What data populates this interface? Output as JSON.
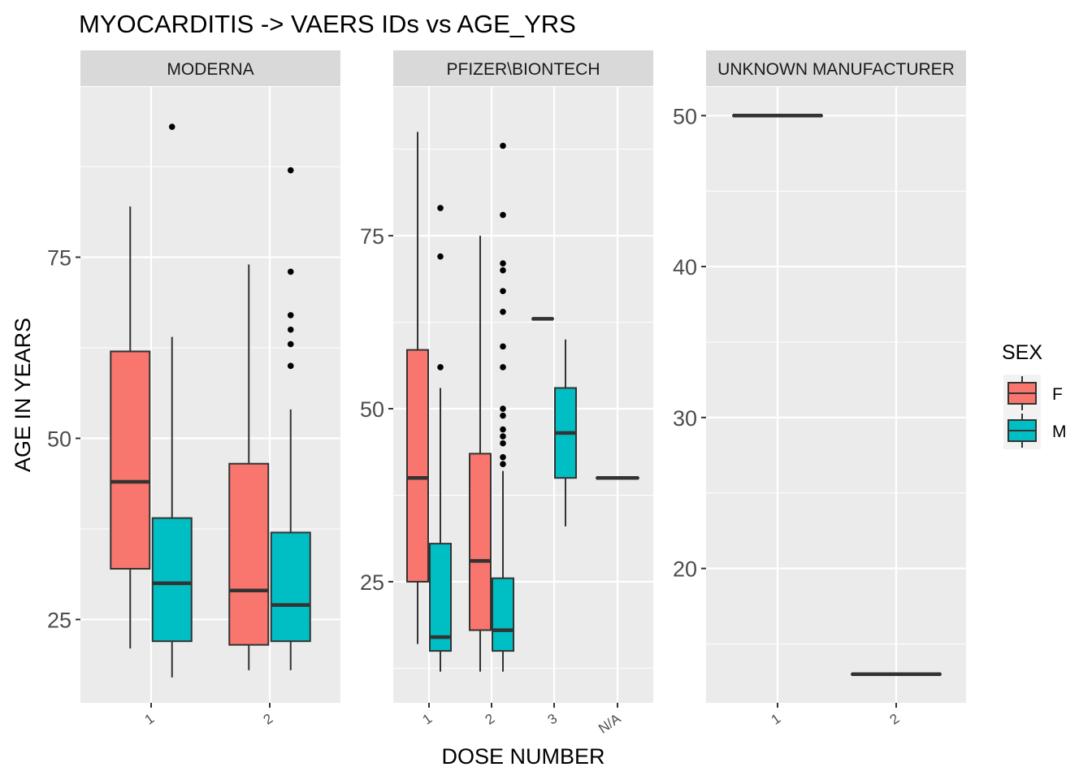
{
  "chart_data": {
    "type": "boxplot",
    "title": "MYOCARDITIS -> VAERS IDs vs AGE_YRS",
    "xlabel": "DOSE NUMBER",
    "ylabel": "AGE IN YEARS",
    "legend": {
      "title": "SEX",
      "placement": "right",
      "entries": [
        {
          "label": "F",
          "color": "#F8766D"
        },
        {
          "label": "M",
          "color": "#00BFC4"
        }
      ]
    },
    "panels": [
      {
        "name": "MODERNA",
        "categories": [
          "1",
          "2"
        ],
        "ylim": [
          13.5,
          98.5
        ],
        "yticks": [
          25,
          50,
          75
        ],
        "boxes": [
          {
            "dose": "1",
            "sex": "F",
            "min": 21,
            "q1": 32,
            "median": 44,
            "q3": 62,
            "max": 82,
            "outliers": []
          },
          {
            "dose": "1",
            "sex": "M",
            "min": 17,
            "q1": 22,
            "median": 30,
            "q3": 39,
            "max": 64,
            "outliers": [
              93
            ]
          },
          {
            "dose": "2",
            "sex": "F",
            "min": 18,
            "q1": 21.5,
            "median": 29,
            "q3": 46.5,
            "max": 74,
            "outliers": []
          },
          {
            "dose": "2",
            "sex": "M",
            "min": 18,
            "q1": 22,
            "median": 27,
            "q3": 37,
            "max": 54,
            "outliers": [
              60,
              63,
              65,
              67,
              73,
              87
            ]
          }
        ]
      },
      {
        "name": "PFIZER\\BIONTECH",
        "categories": [
          "1",
          "2",
          "3",
          "N/A"
        ],
        "ylim": [
          7.5,
          96.5
        ],
        "yticks": [
          25,
          50,
          75
        ],
        "boxes": [
          {
            "dose": "1",
            "sex": "F",
            "min": 16,
            "q1": 25,
            "median": 40,
            "q3": 58.5,
            "max": 90,
            "outliers": []
          },
          {
            "dose": "1",
            "sex": "M",
            "min": 12,
            "q1": 15,
            "median": 17,
            "q3": 30.5,
            "max": 53,
            "outliers": [
              56,
              72,
              79
            ]
          },
          {
            "dose": "2",
            "sex": "F",
            "min": 12,
            "q1": 18,
            "median": 28,
            "q3": 43.5,
            "max": 75,
            "outliers": []
          },
          {
            "dose": "2",
            "sex": "M",
            "min": 12,
            "q1": 15,
            "median": 18,
            "q3": 25.5,
            "max": 41,
            "outliers": [
              42,
              43,
              45,
              46,
              47,
              49,
              50,
              56,
              59,
              64,
              67,
              70,
              71,
              78,
              88
            ]
          },
          {
            "dose": "3",
            "sex": "F",
            "min": 63,
            "q1": 63,
            "median": 63,
            "q3": 63,
            "max": 63,
            "outliers": []
          },
          {
            "dose": "3",
            "sex": "M",
            "min": 33,
            "q1": 40,
            "median": 46.5,
            "q3": 53,
            "max": 60,
            "outliers": []
          },
          {
            "dose": "N/A",
            "sex": "M",
            "min": 40,
            "q1": 40,
            "median": 40,
            "q3": 40,
            "max": 40,
            "outliers": []
          }
        ]
      },
      {
        "name": "UNKNOWN MANUFACTURER",
        "categories": [
          "1",
          "2"
        ],
        "ylim": [
          11.1,
          51.9
        ],
        "yticks": [
          20,
          30,
          40,
          50
        ],
        "boxes": [
          {
            "dose": "1",
            "sex": "F",
            "min": 50,
            "q1": 50,
            "median": 50,
            "q3": 50,
            "max": 50,
            "outliers": []
          },
          {
            "dose": "2",
            "sex": "M",
            "min": 13,
            "q1": 13,
            "median": 13,
            "q3": 13,
            "max": 13,
            "outliers": []
          }
        ]
      }
    ]
  }
}
